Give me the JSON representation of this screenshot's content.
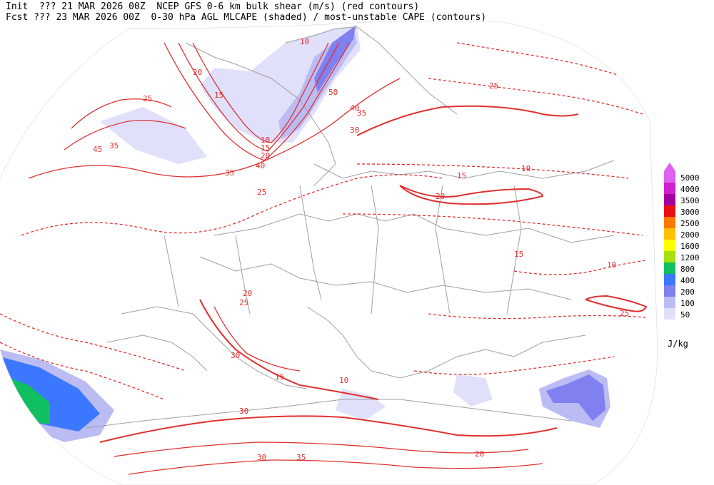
{
  "header": {
    "line1": "Init  ??? 21 MAR 2026 00Z  NCEP GFS 0-6 km bulk shear (m/s) (red contours)",
    "line2": "Fcst ??? 23 MAR 2026 00Z  0-30 hPa AGL MLCAPE (shaded) / most-unstable CAPE (contours)"
  },
  "legend": {
    "unit": "J/kg",
    "items": [
      {
        "label": "5000",
        "color": "#e060f0"
      },
      {
        "label": "4000",
        "color": "#d020d0"
      },
      {
        "label": "3500",
        "color": "#a000a0"
      },
      {
        "label": "3000",
        "color": "#e81010"
      },
      {
        "label": "2500",
        "color": "#ff7800"
      },
      {
        "label": "2000",
        "color": "#ffc000"
      },
      {
        "label": "1600",
        "color": "#ffff00"
      },
      {
        "label": "1200",
        "color": "#a8e010"
      },
      {
        "label": "800",
        "color": "#10c060"
      },
      {
        "label": "400",
        "color": "#3c78ff"
      },
      {
        "label": "200",
        "color": "#8080f0"
      },
      {
        "label": "100",
        "color": "#bcbcf4"
      },
      {
        "label": "50",
        "color": "#e0e0fa"
      }
    ]
  },
  "colors": {
    "shear_contour": "#e03030",
    "border": "#a0a0a0"
  },
  "shear_labels": [
    "10",
    "15",
    "20",
    "25",
    "30",
    "35",
    "40",
    "45",
    "50",
    "10",
    "15",
    "20",
    "25",
    "30",
    "35",
    "40",
    "10",
    "15",
    "20",
    "25",
    "10",
    "15",
    "20",
    "25",
    "30",
    "35",
    "10",
    "15",
    "20",
    "25",
    "30",
    "35"
  ]
}
